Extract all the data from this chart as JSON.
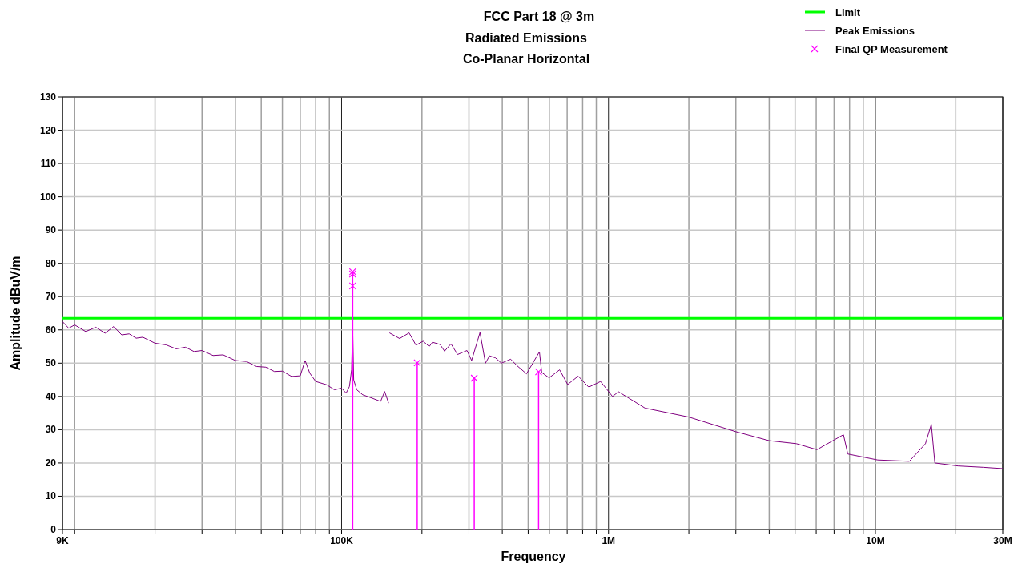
{
  "chart_data": {
    "type": "line",
    "title": "FCC Part 18 @ 3m",
    "subtitle": "Radiated Emissions\nCo-Planar Horizontal",
    "xlabel": "Frequency",
    "ylabel": "Amplitude dBuV/m",
    "log": "x",
    "grid": true,
    "legend": "top right",
    "xlim": [
      9000,
      30000000
    ],
    "ylim": [
      0,
      130
    ],
    "xticks": [
      {
        "value": 9000,
        "label": "9K"
      },
      {
        "value": 10000,
        "label": null
      },
      {
        "value": 20000,
        "label": null
      },
      {
        "value": 30000,
        "label": null
      },
      {
        "value": 40000,
        "label": null
      },
      {
        "value": 50000,
        "label": null
      },
      {
        "value": 60000,
        "label": null
      },
      {
        "value": 70000,
        "label": null
      },
      {
        "value": 80000,
        "label": null
      },
      {
        "value": 90000,
        "label": null
      },
      {
        "value": 100000,
        "label": "100K"
      },
      {
        "value": 200000,
        "label": null
      },
      {
        "value": 300000,
        "label": null
      },
      {
        "value": 400000,
        "label": null
      },
      {
        "value": 500000,
        "label": null
      },
      {
        "value": 600000,
        "label": null
      },
      {
        "value": 700000,
        "label": null
      },
      {
        "value": 800000,
        "label": null
      },
      {
        "value": 900000,
        "label": null
      },
      {
        "value": 1000000,
        "label": "1M"
      },
      {
        "value": 2000000,
        "label": null
      },
      {
        "value": 3000000,
        "label": null
      },
      {
        "value": 4000000,
        "label": null
      },
      {
        "value": 5000000,
        "label": null
      },
      {
        "value": 6000000,
        "label": null
      },
      {
        "value": 7000000,
        "label": null
      },
      {
        "value": 8000000,
        "label": null
      },
      {
        "value": 9000000,
        "label": null
      },
      {
        "value": 10000000,
        "label": "10M"
      },
      {
        "value": 20000000,
        "label": null
      },
      {
        "value": 30000000,
        "label": "30M"
      }
    ],
    "yticks": [
      0,
      10,
      20,
      30,
      40,
      50,
      60,
      70,
      80,
      90,
      100,
      110,
      120,
      130
    ],
    "series": [
      {
        "name": "Limit",
        "color": "#00ff00",
        "x": [
          9000,
          30000000
        ],
        "values": [
          63.5,
          63.5
        ]
      },
      {
        "name": "Peak Emissions",
        "color": "#800080",
        "x": [
          9000,
          9500,
          10000,
          11000,
          12000,
          13000,
          14000,
          15000,
          16000,
          17000,
          18000,
          20000,
          22000,
          24000,
          26000,
          28000,
          30000,
          33000,
          36000,
          40000,
          44000,
          48000,
          52000,
          56000,
          60000,
          65000,
          70000,
          73000,
          76000,
          80000,
          88000,
          94000,
          100000,
          104000,
          107000,
          109000,
          110000,
          111000,
          114000,
          120000,
          130000,
          140000,
          145000,
          150000,
          151000,
          151100,
          165000,
          179000,
          190000,
          202000,
          213000,
          219000,
          234000,
          243000,
          257000,
          272000,
          295000,
          307000,
          330000,
          346000,
          358000,
          377000,
          397000,
          430000,
          455000,
          493000,
          551000,
          562000,
          599000,
          656000,
          703000,
          770000,
          843000,
          934000,
          1035000,
          1090000,
          1370000,
          2000000,
          3000000,
          4000000,
          5060000,
          6040000,
          7590000,
          7880000,
          10200000,
          13400000,
          15400000,
          16200000,
          16700000,
          20400000,
          25300000,
          30000000
        ],
        "values": [
          62.5,
          60.5,
          61.5,
          59.5,
          60.8,
          59.0,
          61.0,
          58.5,
          58.8,
          57.5,
          57.8,
          56.0,
          55.5,
          54.3,
          54.8,
          53.5,
          53.8,
          52.3,
          52.5,
          50.8,
          50.5,
          49.0,
          48.8,
          47.5,
          47.6,
          46.0,
          46.2,
          50.8,
          47.0,
          44.5,
          43.5,
          42.0,
          42.5,
          41.0,
          43.0,
          48.0,
          61.0,
          45.0,
          42.0,
          40.5,
          39.5,
          38.5,
          41.5,
          38.0,
          null,
          59.1,
          57.4,
          59.1,
          55.4,
          56.6,
          55.0,
          56.3,
          55.6,
          53.6,
          55.8,
          52.6,
          53.8,
          50.8,
          59.2,
          50.0,
          52.2,
          51.6,
          50.0,
          51.2,
          49.2,
          46.8,
          53.4,
          47.2,
          45.6,
          48.0,
          43.6,
          46.1,
          42.8,
          44.5,
          40.0,
          41.4,
          36.5,
          33.8,
          29.4,
          26.7,
          25.8,
          24.0,
          28.5,
          22.7,
          20.9,
          20.5,
          25.8,
          31.6,
          20.0,
          19.1,
          18.7,
          18.3
        ]
      },
      {
        "name": "Final QP Measurement",
        "type": "lollipop",
        "marker": "cross",
        "color": "#ff00ff",
        "x": [
          110000,
          110000,
          110000,
          192000,
          314000,
          547000
        ],
        "values": [
          77.5,
          76.8,
          73.2,
          50.1,
          45.5,
          47.4
        ]
      }
    ]
  }
}
